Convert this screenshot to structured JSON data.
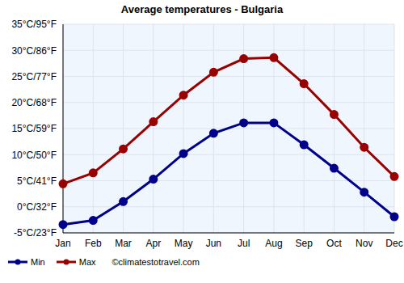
{
  "chart_data": {
    "type": "line",
    "title": "Average temperatures - Bulgaria",
    "categories": [
      "Jan",
      "Feb",
      "Mar",
      "Apr",
      "May",
      "Jun",
      "Jul",
      "Aug",
      "Sep",
      "Oct",
      "Nov",
      "Dec"
    ],
    "series": [
      {
        "name": "Min",
        "color": "#00008b",
        "marker": "circle",
        "values": [
          -3.4,
          -2.6,
          1.0,
          5.3,
          10.2,
          14.1,
          16.1,
          16.1,
          11.9,
          7.4,
          2.8,
          -1.9
        ]
      },
      {
        "name": "Max",
        "color": "#990000",
        "marker": "circle",
        "values": [
          4.4,
          6.5,
          11.1,
          16.3,
          21.4,
          25.8,
          28.4,
          28.6,
          23.6,
          17.7,
          11.4,
          5.8
        ]
      }
    ],
    "ylim": [
      -5,
      35
    ],
    "yticks": [
      {
        "value": -5,
        "label": "-5°C/23°F"
      },
      {
        "value": 0,
        "label": "0°C/32°F"
      },
      {
        "value": 5,
        "label": "5°C/41°F"
      },
      {
        "value": 10,
        "label": "10°C/50°F"
      },
      {
        "value": 15,
        "label": "15°C/59°F"
      },
      {
        "value": 20,
        "label": "20°C/68°F"
      },
      {
        "value": 25,
        "label": "25°C/77°F"
      },
      {
        "value": 30,
        "label": "30°C/86°F"
      },
      {
        "value": 35,
        "label": "35°C/95°F"
      }
    ],
    "grid": true,
    "legend": "lower left",
    "annotation": "©climatestotravel.com"
  }
}
